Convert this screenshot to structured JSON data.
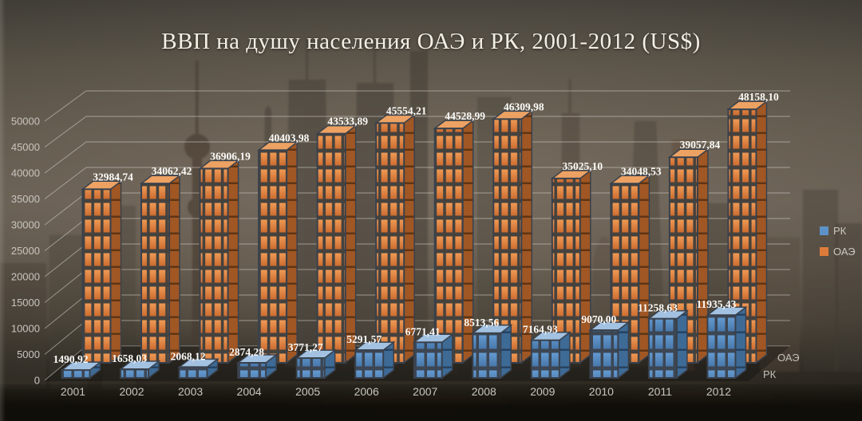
{
  "title": "ВВП на душу населения ОАЭ и РК, 2001-2012 (US$)",
  "legend": {
    "rk": {
      "label": "РК",
      "color": "#5d92c8"
    },
    "oae": {
      "label": "ОАЭ",
      "color": "#dd7c3a"
    }
  },
  "depth_axis": {
    "oae": "ОАЭ",
    "rk": "РК"
  },
  "chart_data": {
    "type": "bar",
    "projection": "3d-column",
    "title": "ВВП на душу населения ОАЭ и РК, 2001-2012 (US$)",
    "categories": [
      "2001",
      "2002",
      "2003",
      "2004",
      "2005",
      "2006",
      "2007",
      "2008",
      "2009",
      "2010",
      "2011",
      "2012"
    ],
    "series": [
      {
        "name": "РК",
        "color": "#5d92c8",
        "values": [
          1490.92,
          1658.03,
          2068.12,
          2874.28,
          3771.27,
          5291.57,
          6771.41,
          8513.56,
          7164.93,
          9070.0,
          11258.63,
          11935.43
        ],
        "labels": [
          "1490,92",
          "1658,03",
          "2068,12",
          "2874,28",
          "3771,27",
          "5291,57",
          "6771,41",
          "8513,56",
          "7164,93",
          "9070,00",
          "11258,63",
          "11935,43"
        ]
      },
      {
        "name": "ОАЭ",
        "color": "#dd7c3a",
        "values": [
          32984.74,
          34062.42,
          36906.19,
          40403.98,
          43533.89,
          45554.21,
          44528.99,
          46309.98,
          35025.1,
          34048.53,
          39057.84,
          48158.1
        ],
        "labels": [
          "32984,74",
          "34062,42",
          "36906,19",
          "40403,98",
          "43533,89",
          "45554,21",
          "44528,99",
          "46309,98",
          "35025,10",
          "34048,53",
          "39057,84",
          "48158,10"
        ]
      }
    ],
    "xlabel": "",
    "ylabel": "",
    "ylim": [
      0,
      50000
    ],
    "ytick_step": 5000,
    "yticks": [
      "0",
      "5000",
      "10000",
      "15000",
      "20000",
      "25000",
      "30000",
      "35000",
      "40000",
      "45000",
      "50000"
    ],
    "grid": true,
    "legend_position": "right"
  },
  "colors": {
    "rk_front": "#5d92c8",
    "rk_side": "#3e6a96",
    "rk_top": "#a3c2e2",
    "oae_front": "#e0803e",
    "oae_side": "#a05724",
    "oae_top": "#eda263",
    "frame": "#39414c",
    "gridline": "#d9d6d0",
    "axis_text": "#c8c5bf",
    "label_text": "#fcfbf8",
    "title_text": "#f3efe5"
  }
}
